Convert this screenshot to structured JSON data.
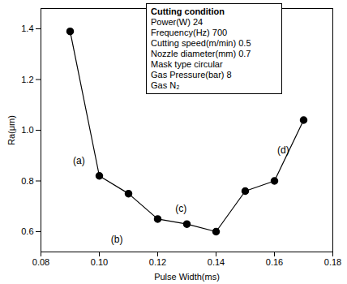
{
  "chart_data": {
    "type": "line",
    "marker": "circle",
    "color": "#000000",
    "x_label": "Pulse Width(ms)",
    "y_label": "Ra(μm)",
    "x": [
      0.09,
      0.1,
      0.11,
      0.12,
      0.13,
      0.14,
      0.15,
      0.16,
      0.17
    ],
    "values": [
      1.39,
      0.82,
      0.75,
      0.65,
      0.63,
      0.6,
      0.76,
      0.8,
      1.04
    ],
    "xlim": [
      0.08,
      0.18
    ],
    "xticks": [
      0.08,
      {
        "value": 0.1,
        "label": "0.10"
      },
      0.12,
      0.14,
      0.16,
      0.18
    ],
    "ylim": [
      0.52,
      1.48
    ],
    "yticks": [
      0.6,
      0.8,
      {
        "value": 1,
        "label": "1.0"
      },
      1.2,
      1.4
    ],
    "annotations": [
      {
        "text": "(a)",
        "x": 0.093,
        "y": 0.88
      },
      {
        "text": "(b)",
        "x": 0.106,
        "y": 0.57
      },
      {
        "text": "(c)",
        "x": 0.128,
        "y": 0.69
      },
      {
        "text": "(d)",
        "x": 0.163,
        "y": 0.92
      }
    ],
    "annotation_box": {
      "title": "Cutting condition",
      "rows": [
        [
          "Power(W)",
          "24"
        ],
        [
          "Frequency(Hz)",
          "700"
        ],
        [
          "Cutting speed(m/min)",
          "0.5"
        ],
        [
          "Nozzle diameter(mm)",
          "0.7"
        ],
        [
          "Mask type",
          "circular"
        ],
        [
          "Gas Pressure(bar)",
          "8"
        ],
        [
          "Gas",
          "N₂"
        ]
      ]
    }
  }
}
